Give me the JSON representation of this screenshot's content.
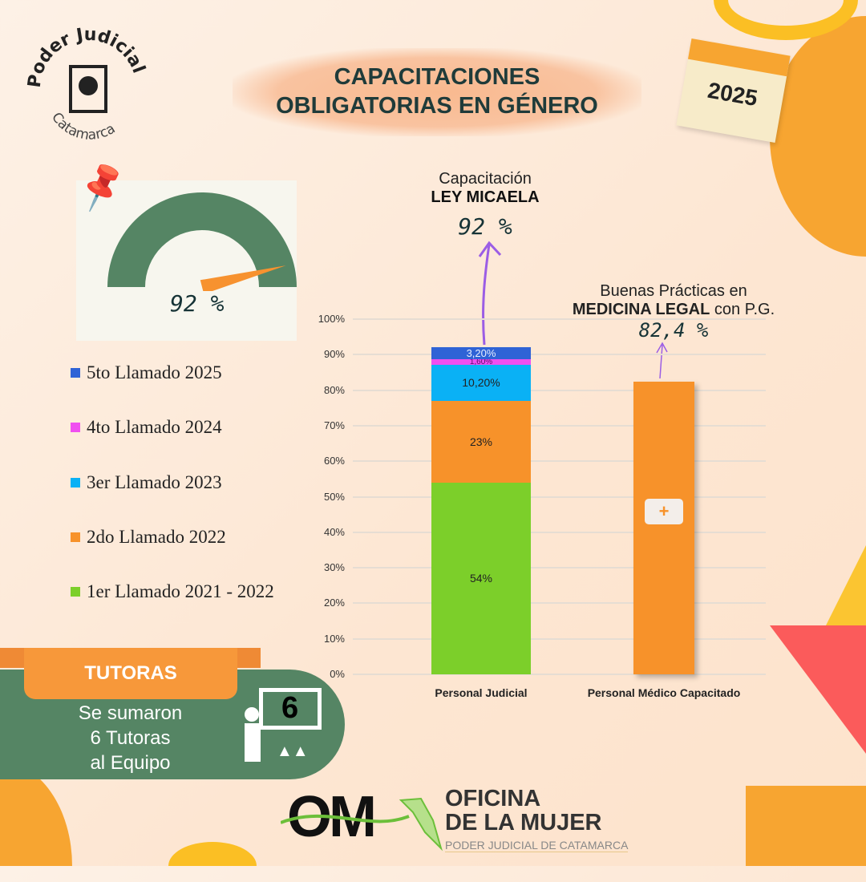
{
  "logo": {
    "top": "Poder Judicial",
    "bottom": "Catamarca"
  },
  "title": {
    "line1": "CAPACITACIONES",
    "line2": "OBLIGATORIAS EN GÉNERO"
  },
  "calendar": {
    "year": "2025"
  },
  "gauge": {
    "value_label": "92 %",
    "value": 92,
    "colors": {
      "arc": "#558564",
      "needle": "#f7922f"
    }
  },
  "legend": [
    {
      "label": "5to Llamado 2025",
      "color": "#2f63d6"
    },
    {
      "label": "4to Llamado 2024",
      "color": "#f04ff0"
    },
    {
      "label": "3er Llamado 2023",
      "color": "#0ab1f5"
    },
    {
      "label": "2do Llamado 2022",
      "color": "#f7922a"
    },
    {
      "label": "1er Llamado 2021 - 2022",
      "color": "#7ccf2a"
    }
  ],
  "annotation1": {
    "line1": "Capacitación",
    "line2": "LEY MICAELA",
    "value": "92 %"
  },
  "annotation2": {
    "line1": "Buenas Prácticas en",
    "bold": "MEDICINA LEGAL",
    "rest": " con P.G.",
    "value": "82,4 %"
  },
  "chart_data": {
    "type": "bar",
    "stacked": true,
    "categories": [
      "Personal Judicial",
      "Personal Médico Capacitado"
    ],
    "ylim": [
      0,
      100
    ],
    "grid": true,
    "yticks": [
      "0%",
      "10%",
      "20%",
      "30%",
      "40%",
      "50%",
      "60%",
      "70%",
      "80%",
      "90%",
      "100%"
    ],
    "series": [
      {
        "name": "1er Llamado 2021 - 2022",
        "values": [
          54,
          0
        ],
        "labels": [
          "54%",
          ""
        ],
        "color": "#7ccf2a"
      },
      {
        "name": "2do Llamado 2022",
        "values": [
          23,
          82.4
        ],
        "labels": [
          "23%",
          ""
        ],
        "color": "#f7922a"
      },
      {
        "name": "3er Llamado 2023",
        "values": [
          10.2,
          0
        ],
        "labels": [
          "10,20%",
          ""
        ],
        "color": "#0ab1f5"
      },
      {
        "name": "4to Llamado 2024",
        "values": [
          1.6,
          0
        ],
        "labels": [
          "1,60%",
          ""
        ],
        "color": "#f04ff0"
      },
      {
        "name": "5to Llamado 2025",
        "values": [
          3.2,
          0
        ],
        "labels": [
          "3,20%",
          ""
        ],
        "color": "#2f63d6"
      }
    ]
  },
  "tutoras": {
    "title": "TUTORAS",
    "line1": "Se sumaron",
    "line2": "6 Tutoras",
    "line3": "al Equipo",
    "count": "6"
  },
  "footer": {
    "om": "OM",
    "line1": "OFICINA",
    "line2": "DE LA MUJER",
    "line3": "PODER JUDICIAL DE CATAMARCA"
  }
}
